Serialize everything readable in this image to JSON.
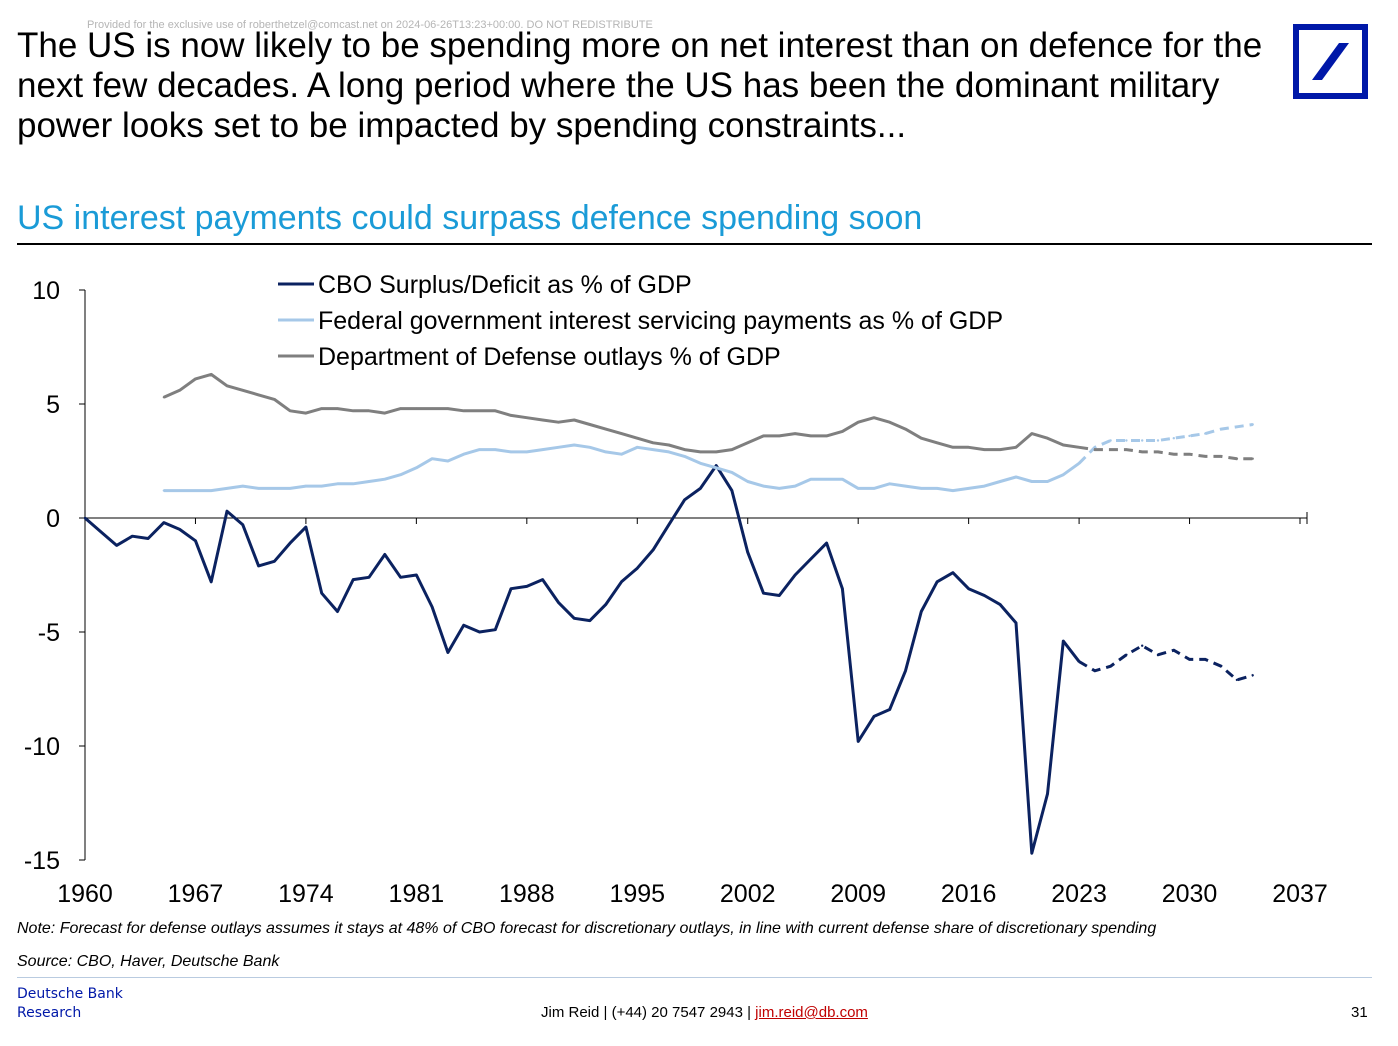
{
  "watermark": "Provided for the exclusive use of roberthetzel@comcast.net on 2024-06-26T13:23+00:00. DO NOT REDISTRIBUTE",
  "headline": "The US is now likely to be spending more on net interest than on defence for the next few decades. A long period where the US has been the dominant military power looks set to be impacted by spending constraints...",
  "subtitle": "US interest payments could surpass defence spending soon",
  "note": "Note: Forecast for defense outlays assumes it stays at 48% of CBO forecast for discretionary outlays, in line with current defense share of discretionary spending",
  "source": "Source: CBO, Haver, Deutsche Bank",
  "footer": {
    "brand_line1": "Deutsche Bank",
    "brand_line2": "Research",
    "contact_prefix": "Jim Reid | (+44) 20 7547 2943 | ",
    "contact_email": "jim.reid@db.com",
    "page_number": "31"
  },
  "colors": {
    "deficit": "#0b2260",
    "interest": "#a6c8e8",
    "defense": "#7f7f7f",
    "subtitle": "#1a9bd7",
    "logo": "#0018a8"
  },
  "chart_data": {
    "type": "line",
    "title": "",
    "xlabel": "",
    "ylabel": "",
    "xlim": [
      1960,
      2037
    ],
    "ylim": [
      -15,
      10
    ],
    "xticks": [
      1960,
      1967,
      1974,
      1981,
      1988,
      1995,
      2002,
      2009,
      2016,
      2023,
      2030,
      2037
    ],
    "yticks": [
      10,
      5,
      0,
      -5,
      -10,
      -15
    ],
    "forecast_start": 2024,
    "legend_position": "top-center",
    "series": [
      {
        "name": "CBO Surplus/Deficit as % of GDP",
        "color": "#0b2260",
        "x": [
          1960,
          1961,
          1962,
          1963,
          1964,
          1965,
          1966,
          1967,
          1968,
          1969,
          1970,
          1971,
          1972,
          1973,
          1974,
          1975,
          1976,
          1977,
          1978,
          1979,
          1980,
          1981,
          1982,
          1983,
          1984,
          1985,
          1986,
          1987,
          1988,
          1989,
          1990,
          1991,
          1992,
          1993,
          1994,
          1995,
          1996,
          1997,
          1998,
          1999,
          2000,
          2001,
          2002,
          2003,
          2004,
          2005,
          2006,
          2007,
          2008,
          2009,
          2010,
          2011,
          2012,
          2013,
          2014,
          2015,
          2016,
          2017,
          2018,
          2019,
          2020,
          2021,
          2022,
          2023,
          2024,
          2025,
          2026,
          2027,
          2028,
          2029,
          2030,
          2031,
          2032,
          2033,
          2034
        ],
        "values": [
          0.0,
          -0.6,
          -1.2,
          -0.8,
          -0.9,
          -0.2,
          -0.5,
          -1.0,
          -2.8,
          0.3,
          -0.3,
          -2.1,
          -1.9,
          -1.1,
          -0.4,
          -3.3,
          -4.1,
          -2.7,
          -2.6,
          -1.6,
          -2.6,
          -2.5,
          -3.9,
          -5.9,
          -4.7,
          -5.0,
          -4.9,
          -3.1,
          -3.0,
          -2.7,
          -3.7,
          -4.4,
          -4.5,
          -3.8,
          -2.8,
          -2.2,
          -1.4,
          -0.3,
          0.8,
          1.3,
          2.3,
          1.2,
          -1.5,
          -3.3,
          -3.4,
          -2.5,
          -1.8,
          -1.1,
          -3.1,
          -9.8,
          -8.7,
          -8.4,
          -6.7,
          -4.1,
          -2.8,
          -2.4,
          -3.1,
          -3.4,
          -3.8,
          -4.6,
          -14.7,
          -12.1,
          -5.4,
          -6.3,
          -6.7,
          -6.5,
          -6.0,
          -5.6,
          -6.0,
          -5.8,
          -6.2,
          -6.2,
          -6.5,
          -7.1,
          -6.9
        ]
      },
      {
        "name": "Federal government interest servicing payments as % of GDP",
        "color": "#a6c8e8",
        "x": [
          1965,
          1966,
          1967,
          1968,
          1969,
          1970,
          1971,
          1972,
          1973,
          1974,
          1975,
          1976,
          1977,
          1978,
          1979,
          1980,
          1981,
          1982,
          1983,
          1984,
          1985,
          1986,
          1987,
          1988,
          1989,
          1990,
          1991,
          1992,
          1993,
          1994,
          1995,
          1996,
          1997,
          1998,
          1999,
          2000,
          2001,
          2002,
          2003,
          2004,
          2005,
          2006,
          2007,
          2008,
          2009,
          2010,
          2011,
          2012,
          2013,
          2014,
          2015,
          2016,
          2017,
          2018,
          2019,
          2020,
          2021,
          2022,
          2023,
          2024,
          2025,
          2026,
          2027,
          2028,
          2029,
          2030,
          2031,
          2032,
          2033,
          2034
        ],
        "values": [
          1.2,
          1.2,
          1.2,
          1.2,
          1.3,
          1.4,
          1.3,
          1.3,
          1.3,
          1.4,
          1.4,
          1.5,
          1.5,
          1.6,
          1.7,
          1.9,
          2.2,
          2.6,
          2.5,
          2.8,
          3.0,
          3.0,
          2.9,
          2.9,
          3.0,
          3.1,
          3.2,
          3.1,
          2.9,
          2.8,
          3.1,
          3.0,
          2.9,
          2.7,
          2.4,
          2.2,
          2.0,
          1.6,
          1.4,
          1.3,
          1.4,
          1.7,
          1.7,
          1.7,
          1.3,
          1.3,
          1.5,
          1.4,
          1.3,
          1.3,
          1.2,
          1.3,
          1.4,
          1.6,
          1.8,
          1.6,
          1.6,
          1.9,
          2.4,
          3.1,
          3.4,
          3.4,
          3.4,
          3.4,
          3.5,
          3.6,
          3.7,
          3.9,
          4.0,
          4.1
        ]
      },
      {
        "name": "Department of Defense outlays % of GDP",
        "color": "#7f7f7f",
        "x": [
          1965,
          1966,
          1967,
          1968,
          1969,
          1970,
          1971,
          1972,
          1973,
          1974,
          1975,
          1976,
          1977,
          1978,
          1979,
          1980,
          1981,
          1982,
          1983,
          1984,
          1985,
          1986,
          1987,
          1988,
          1989,
          1990,
          1991,
          1992,
          1993,
          1994,
          1995,
          1996,
          1997,
          1998,
          1999,
          2000,
          2001,
          2002,
          2003,
          2004,
          2005,
          2006,
          2007,
          2008,
          2009,
          2010,
          2011,
          2012,
          2013,
          2014,
          2015,
          2016,
          2017,
          2018,
          2019,
          2020,
          2021,
          2022,
          2023,
          2024,
          2025,
          2026,
          2027,
          2028,
          2029,
          2030,
          2031,
          2032,
          2033,
          2034
        ],
        "values": [
          5.3,
          5.6,
          6.1,
          6.3,
          5.8,
          5.6,
          5.4,
          5.2,
          4.7,
          4.6,
          4.8,
          4.8,
          4.7,
          4.7,
          4.6,
          4.8,
          4.8,
          4.8,
          4.8,
          4.7,
          4.7,
          4.7,
          4.5,
          4.4,
          4.3,
          4.2,
          4.3,
          4.1,
          3.9,
          3.7,
          3.5,
          3.3,
          3.2,
          3.0,
          2.9,
          2.9,
          3.0,
          3.3,
          3.6,
          3.6,
          3.7,
          3.6,
          3.6,
          3.8,
          4.2,
          4.4,
          4.2,
          3.9,
          3.5,
          3.3,
          3.1,
          3.1,
          3.0,
          3.0,
          3.1,
          3.7,
          3.5,
          3.2,
          3.1,
          3.0,
          3.0,
          3.0,
          2.9,
          2.9,
          2.8,
          2.8,
          2.7,
          2.7,
          2.6,
          2.6
        ]
      }
    ]
  }
}
